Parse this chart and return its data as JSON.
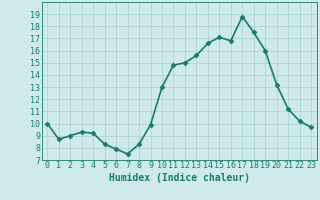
{
  "x": [
    0,
    1,
    2,
    3,
    4,
    5,
    6,
    7,
    8,
    9,
    10,
    11,
    12,
    13,
    14,
    15,
    16,
    17,
    18,
    19,
    20,
    21,
    22,
    23
  ],
  "y": [
    10.0,
    8.7,
    9.0,
    9.3,
    9.2,
    8.3,
    7.9,
    7.5,
    8.3,
    9.9,
    13.0,
    14.8,
    15.0,
    15.6,
    16.6,
    17.1,
    16.8,
    18.8,
    17.5,
    16.0,
    13.2,
    11.2,
    10.2,
    9.7
  ],
  "line_color": "#1a7a6e",
  "marker": "D",
  "marker_size": 2.5,
  "bg_color": "#ceeaea",
  "grid_color": "#afd4d4",
  "xlabel": "Humidex (Indice chaleur)",
  "xlim": [
    -0.5,
    23.5
  ],
  "ylim": [
    7,
    20
  ],
  "yticks": [
    7,
    8,
    9,
    10,
    11,
    12,
    13,
    14,
    15,
    16,
    17,
    18,
    19
  ],
  "xticks": [
    0,
    1,
    2,
    3,
    4,
    5,
    6,
    7,
    8,
    9,
    10,
    11,
    12,
    13,
    14,
    15,
    16,
    17,
    18,
    19,
    20,
    21,
    22,
    23
  ],
  "xlabel_fontsize": 7,
  "tick_fontsize": 6,
  "line_width": 1.2
}
